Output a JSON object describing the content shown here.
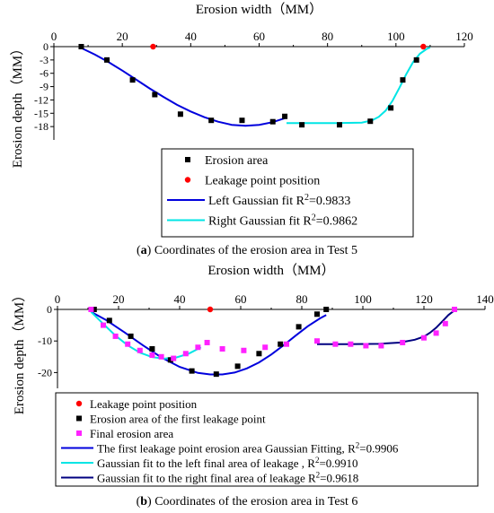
{
  "figure": {
    "panel_a_letter": "a",
    "panel_a_caption": "Coordinates of the erosion area in Test 5",
    "panel_b_letter": "b",
    "panel_b_caption": "Coordinates of the erosion area in Test 6"
  },
  "chart_data": [
    {
      "type": "scatter",
      "xlabel": "Erosion width（MM）",
      "ylabel": "Erosion depth（MM）",
      "xlim": [
        0,
        120
      ],
      "ylim": [
        -21,
        0
      ],
      "x_ticks": [
        0,
        20,
        40,
        60,
        80,
        100,
        120
      ],
      "y_ticks": [
        0,
        -3,
        -6,
        -9,
        -12,
        -15,
        -18
      ],
      "x_axis_position": "top",
      "grid": false,
      "legend_position": "bottom-center",
      "series": [
        {
          "name": "Erosion area",
          "kind": "points",
          "marker": "square",
          "color": "#000000",
          "x": [
            8,
            15.5,
            23,
            29.5,
            37,
            46,
            55,
            64,
            67.5,
            72.5,
            83.5,
            92.5,
            98.5,
            102,
            106
          ],
          "y": [
            0,
            -3,
            -7.5,
            -10.8,
            -15.2,
            -16.6,
            -16.6,
            -16.9,
            -15.7,
            -17.6,
            -17.6,
            -16.8,
            -13.8,
            -7.5,
            -3
          ]
        },
        {
          "name": "Leakage point position",
          "kind": "points",
          "marker": "circle",
          "color": "#ff0000",
          "x": [
            29,
            108
          ],
          "y": [
            0,
            0
          ]
        },
        {
          "name": "Left Gaussian fit",
          "r2_label": "R",
          "r2_value": "=0.9833",
          "kind": "line",
          "color": "#0000dd",
          "x": [
            8,
            12,
            16,
            20,
            24,
            28,
            32,
            36,
            40,
            44,
            48,
            52,
            56,
            60,
            64,
            68
          ],
          "y": [
            -0.3,
            -1.8,
            -3.5,
            -5.4,
            -7.4,
            -9.4,
            -11.3,
            -13.1,
            -14.6,
            -15.9,
            -16.9,
            -17.6,
            -17.8,
            -17.6,
            -17.0,
            -16.0
          ]
        },
        {
          "name": "Right Gaussian fit",
          "r2_label": "R",
          "r2_value": "=0.9862",
          "kind": "line",
          "color": "#00e5e5",
          "x": [
            68,
            76,
            84,
            90,
            93,
            95,
            97,
            99,
            101,
            103,
            105,
            107,
            109,
            110
          ],
          "y": [
            -17.2,
            -17.2,
            -17.2,
            -17.1,
            -16.6,
            -15.8,
            -14.4,
            -12.2,
            -9.3,
            -6.2,
            -3.5,
            -1.6,
            -0.5,
            -0.2
          ]
        }
      ]
    },
    {
      "type": "scatter",
      "xlabel": "Erosion width（MM）",
      "ylabel": "Erosion depth（MM）",
      "xlim": [
        0,
        140
      ],
      "ylim": [
        -25,
        0
      ],
      "x_ticks": [
        0,
        20,
        40,
        60,
        80,
        100,
        120,
        140
      ],
      "y_ticks": [
        0,
        -10,
        -20
      ],
      "x_axis_position": "top",
      "grid": false,
      "legend_position": "bottom-left",
      "series": [
        {
          "name": "Leakage point position",
          "kind": "points",
          "marker": "circle",
          "color": "#ff0000",
          "x": [
            50
          ],
          "y": [
            0
          ]
        },
        {
          "name": "Erosion area of the first leakage point",
          "kind": "points",
          "marker": "square",
          "color": "#000000",
          "x": [
            12,
            17,
            24,
            31,
            37,
            44,
            52,
            59,
            66,
            73,
            79,
            85,
            88
          ],
          "y": [
            0,
            -3.5,
            -8.5,
            -12.5,
            -16,
            -19.5,
            -20.5,
            -18,
            -14,
            -11,
            -5.5,
            -1.5,
            0
          ]
        },
        {
          "name": "Final erosion area",
          "kind": "points",
          "marker": "square",
          "color": "#ff22ff",
          "x": [
            11,
            15,
            19,
            23,
            27,
            31,
            34,
            38,
            42,
            46,
            49,
            54,
            61,
            68,
            75,
            85,
            91,
            96,
            101,
            106,
            113,
            120,
            124,
            127,
            130
          ],
          "y": [
            0,
            -5,
            -8.5,
            -11,
            -13,
            -14.5,
            -15,
            -15.5,
            -14,
            -12,
            -10.5,
            -12.5,
            -13,
            -12,
            -11,
            -10,
            -11,
            -11,
            -11.5,
            -11.5,
            -10.5,
            -9,
            -7.5,
            -4.5,
            0
          ]
        },
        {
          "name": "The first leakage point erosion area Gaussian Fitting,",
          "r2_label": "R",
          "r2_value": "=0.9906",
          "kind": "line",
          "color": "#0000dd",
          "x": [
            11,
            16,
            22,
            28,
            34,
            40,
            46,
            50,
            54,
            58,
            62,
            66,
            70,
            74,
            78,
            82,
            86,
            88
          ],
          "y": [
            -0.8,
            -3.4,
            -7.3,
            -11.4,
            -15.2,
            -18.2,
            -20.1,
            -20.6,
            -20.6,
            -20.0,
            -18.7,
            -16.8,
            -14.3,
            -11.4,
            -8.3,
            -5.3,
            -2.8,
            -1.8
          ]
        },
        {
          "name": "Gaussian fit to the left final area of leakage ,",
          "r2_label": "R",
          "r2_value": "=0.9910",
          "kind": "line",
          "color": "#00e5e5",
          "x": [
            11,
            15,
            19,
            23,
            27,
            31,
            35,
            39,
            43,
            47
          ],
          "y": [
            -0.8,
            -4.6,
            -8.3,
            -11.4,
            -13.7,
            -15.1,
            -15.6,
            -15.2,
            -14.0,
            -12.0
          ]
        },
        {
          "name": "Gaussian fit to the right final area of leakage",
          "r2_label": "R",
          "r2_value": "=0.9618",
          "kind": "line",
          "color": "#000080",
          "x": [
            85,
            95,
            105,
            112,
            117,
            120,
            122,
            124,
            126,
            128,
            130
          ],
          "y": [
            -11,
            -11,
            -10.9,
            -10.5,
            -9.6,
            -8.6,
            -7.4,
            -5.8,
            -3.8,
            -1.8,
            -0.3
          ]
        }
      ]
    }
  ]
}
